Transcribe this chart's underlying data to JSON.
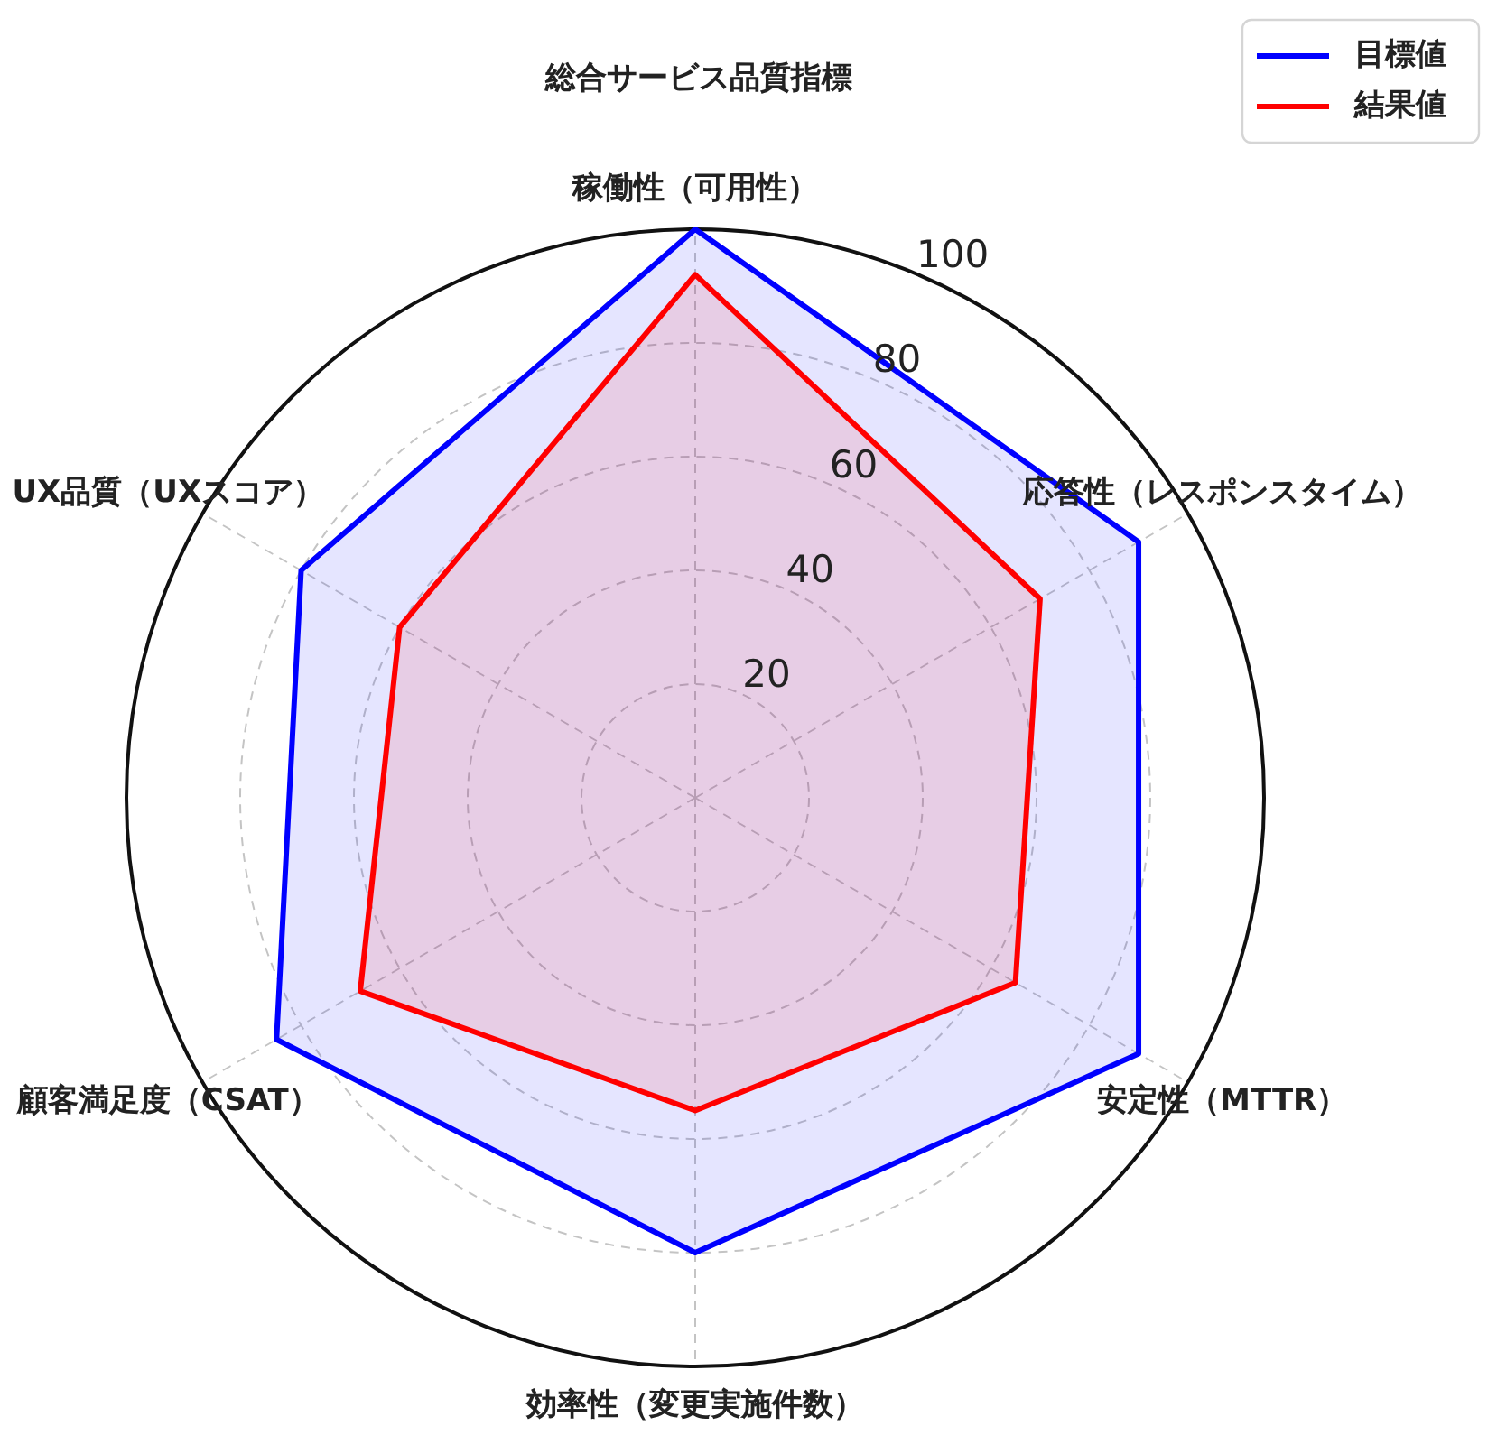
{
  "chart_data": {
    "type": "radar",
    "title": "総合サービス品質指標",
    "categories": [
      "稼働性（可用性）",
      "応答性（レスポンスタイム）",
      "安定性（MTTR）",
      "効率性（変更実施件数）",
      "顧客満足度（CSAT）",
      "UX品質（UXスコア）"
    ],
    "series": [
      {
        "name": "目標値",
        "color": "#0000ff",
        "values": [
          100,
          90,
          90,
          80,
          85,
          80
        ]
      },
      {
        "name": "結果値",
        "color": "#ff0000",
        "values": [
          92,
          70,
          65,
          55,
          68,
          60
        ]
      }
    ],
    "ylim": [
      0,
      100
    ],
    "yticks": [
      20,
      40,
      60,
      80,
      100
    ],
    "grid": true,
    "legend": "top right",
    "marker": "none"
  }
}
